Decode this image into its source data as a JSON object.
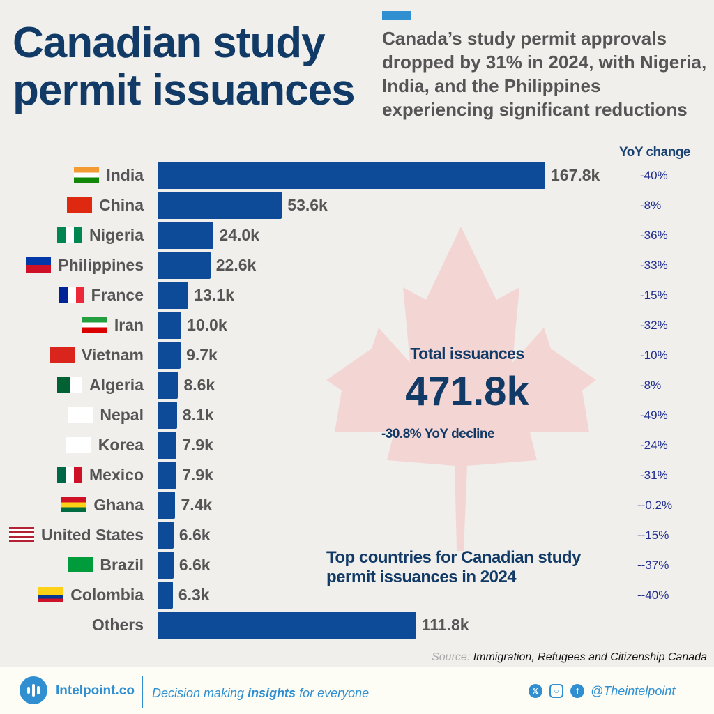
{
  "header": {
    "title_line1": "Canadian study",
    "title_line2": "permit issuances",
    "subtitle": "Canada’s study permit approvals dropped by 31% in 2024, with Nigeria, India, and the Philippines experiencing significant reductions"
  },
  "chart_data": {
    "type": "bar",
    "orientation": "horizontal",
    "title": "Top countries for Canadian study permit issuances in 2024",
    "unit": "k",
    "categories": [
      "India",
      "China",
      "Nigeria",
      "Philippines",
      "France",
      "Iran",
      "Vietnam",
      "Algeria",
      "Nepal",
      "Korea",
      "Mexico",
      "Ghana",
      "United States",
      "Brazil",
      "Colombia",
      "Others"
    ],
    "values": [
      167.8,
      53.6,
      24.0,
      22.6,
      13.1,
      10.0,
      9.7,
      8.6,
      8.1,
      7.9,
      7.9,
      7.4,
      6.6,
      6.6,
      6.3,
      111.8
    ],
    "value_labels": [
      "167.8k",
      "53.6k",
      "24.0k",
      "22.6k",
      "13.1k",
      "10.0k",
      "9.7k",
      "8.6k",
      "8.1k",
      "7.9k",
      "7.9k",
      "7.4k",
      "6.6k",
      "6.6k",
      "6.3k",
      "111.8k"
    ],
    "yoy_header": "YoY change",
    "yoy": [
      "-40%",
      "-8%",
      "-36%",
      "-33%",
      "-15%",
      "-32%",
      "-10%",
      "-8%",
      "-49%",
      "-24%",
      "-31%",
      "--0.2%",
      "--15%",
      "--37%",
      "--40%",
      ""
    ],
    "bar_color": "#0d4a97",
    "grid": false
  },
  "summary": {
    "label": "Total issuances",
    "value": "471.8k",
    "change": "-30.8% YoY decline"
  },
  "source": {
    "prefix": "Source:",
    "text": "Immigration, Refugees and Citizenship Canada"
  },
  "footer": {
    "brand": "Intelpoint.co",
    "tagline_pre": "Decision making ",
    "tagline_bold": "insights",
    "tagline_post": " for everyone",
    "handle": "@Theintelpoint",
    "social_icons": [
      "x-icon",
      "instagram-icon",
      "facebook-icon"
    ]
  }
}
